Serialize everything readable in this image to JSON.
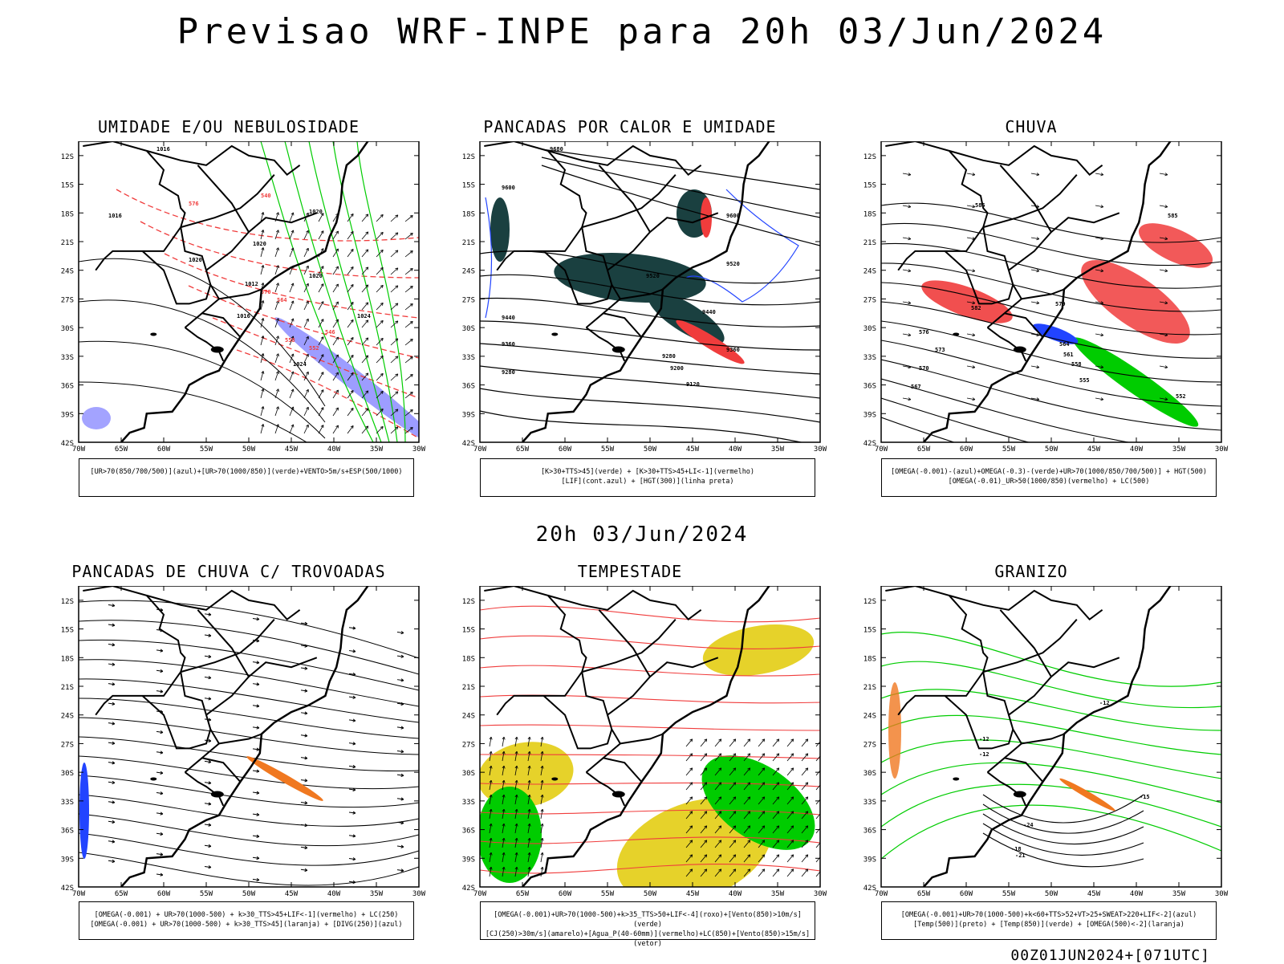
{
  "title": "Previsao WRF-INPE  para 20h 03/Jun/2024",
  "subtitle": "20h 03/Jun/2024",
  "footer": "00Z01JUN2024+[071UTC]",
  "lat_labels": [
    "12S",
    "15S",
    "18S",
    "21S",
    "24S",
    "27S",
    "30S",
    "33S",
    "36S",
    "39S",
    "42S"
  ],
  "lon_labels": [
    "70W",
    "65W",
    "60W",
    "55W",
    "50W",
    "45W",
    "40W",
    "35W",
    "30W"
  ],
  "panels": [
    {
      "title": "UMIDADE E/OU NEBULOSIDADE",
      "caption_lines": [
        "[UR>70(850/700/500)](azul)+[UR>70(1000/850)](verde)+VENTO>5m/s+ESP(500/1000)"
      ],
      "contour_labels": [
        "1016",
        "1016",
        "1020",
        "1020",
        "1020",
        "1024",
        "1024",
        "1020",
        "1016",
        "1012",
        "570",
        "564",
        "558",
        "552",
        "546",
        "540",
        "576"
      ]
    },
    {
      "title": "PANCADAS POR CALOR E UMIDADE",
      "caption_lines": [
        "[K>30+TTS>45](verde) + [K>30+TTS>45+LI<-1](vermelho)",
        "[LIF](cont.azul) + [HGT(300)](linha preta)"
      ],
      "contour_labels": [
        "9680",
        "9600",
        "9600",
        "9520",
        "9520",
        "9440",
        "9440",
        "9360",
        "9360",
        "9280",
        "9280",
        "9200",
        "9120"
      ]
    },
    {
      "title": "CHUVA",
      "caption_lines": [
        "[OMEGA(-0.001)-(azul)+OMEGA(-0.3)-(verde)+UR>70(1000/850/700/500)] + HGT(500)",
        "[OMEGA(-0.01)_UR>50(1000/850)(vermelho) + LC(500)"
      ],
      "contour_labels": [
        "585",
        "585",
        "582",
        "579",
        "576",
        "573",
        "570",
        "567",
        "564",
        "561",
        "558",
        "555",
        "552"
      ]
    },
    {
      "title": "PANCADAS DE CHUVA C/ TROVOADAS",
      "caption_lines": [
        "[OMEGA(-0.001) + UR>70(1000-500) + k>30_TTS>45+LIF<-1](vermelho) + LC(250)",
        "[OMEGA(-0.001) + UR>70(1000-500) + k>30_TTS>45](laranja) + [DIVG(250)](azul)"
      ],
      "contour_labels": []
    },
    {
      "title": "TEMPESTADE",
      "caption_lines": [
        "[OMEGA(-0.001)+UR>70(1000-500)+k>35_TTS>50+LIF<-4](roxo)+[Vento(850)>10m/s](verde)",
        "[CJ(250)>30m/s](amarelo)+[Agua_P(40-60mm)](vermelho)+LC(850)+[Vento(850)>15m/s](vetor)"
      ],
      "contour_labels": []
    },
    {
      "title": "GRANIZO",
      "caption_lines": [
        "[OMEGA(-0.001)+UR>70(1000-500)+k<60+TTS>52+VT>25+SWEAT>220+LIF<-2](azul)",
        "[Temp(500)](preto) + [Temp(850)](verde) + [OMEGA(500)<-2](laranja)"
      ],
      "contour_labels": [
        "-12",
        "-12",
        "-12",
        "-15",
        "-18",
        "-21",
        "-24"
      ]
    }
  ],
  "colors": {
    "red": "#f03c3c",
    "green": "#00cc00",
    "blue": "#2244ff",
    "navy": "#1a4040",
    "yellow": "#e6d22a",
    "orange": "#f07820",
    "purple": "#8c8cff"
  }
}
